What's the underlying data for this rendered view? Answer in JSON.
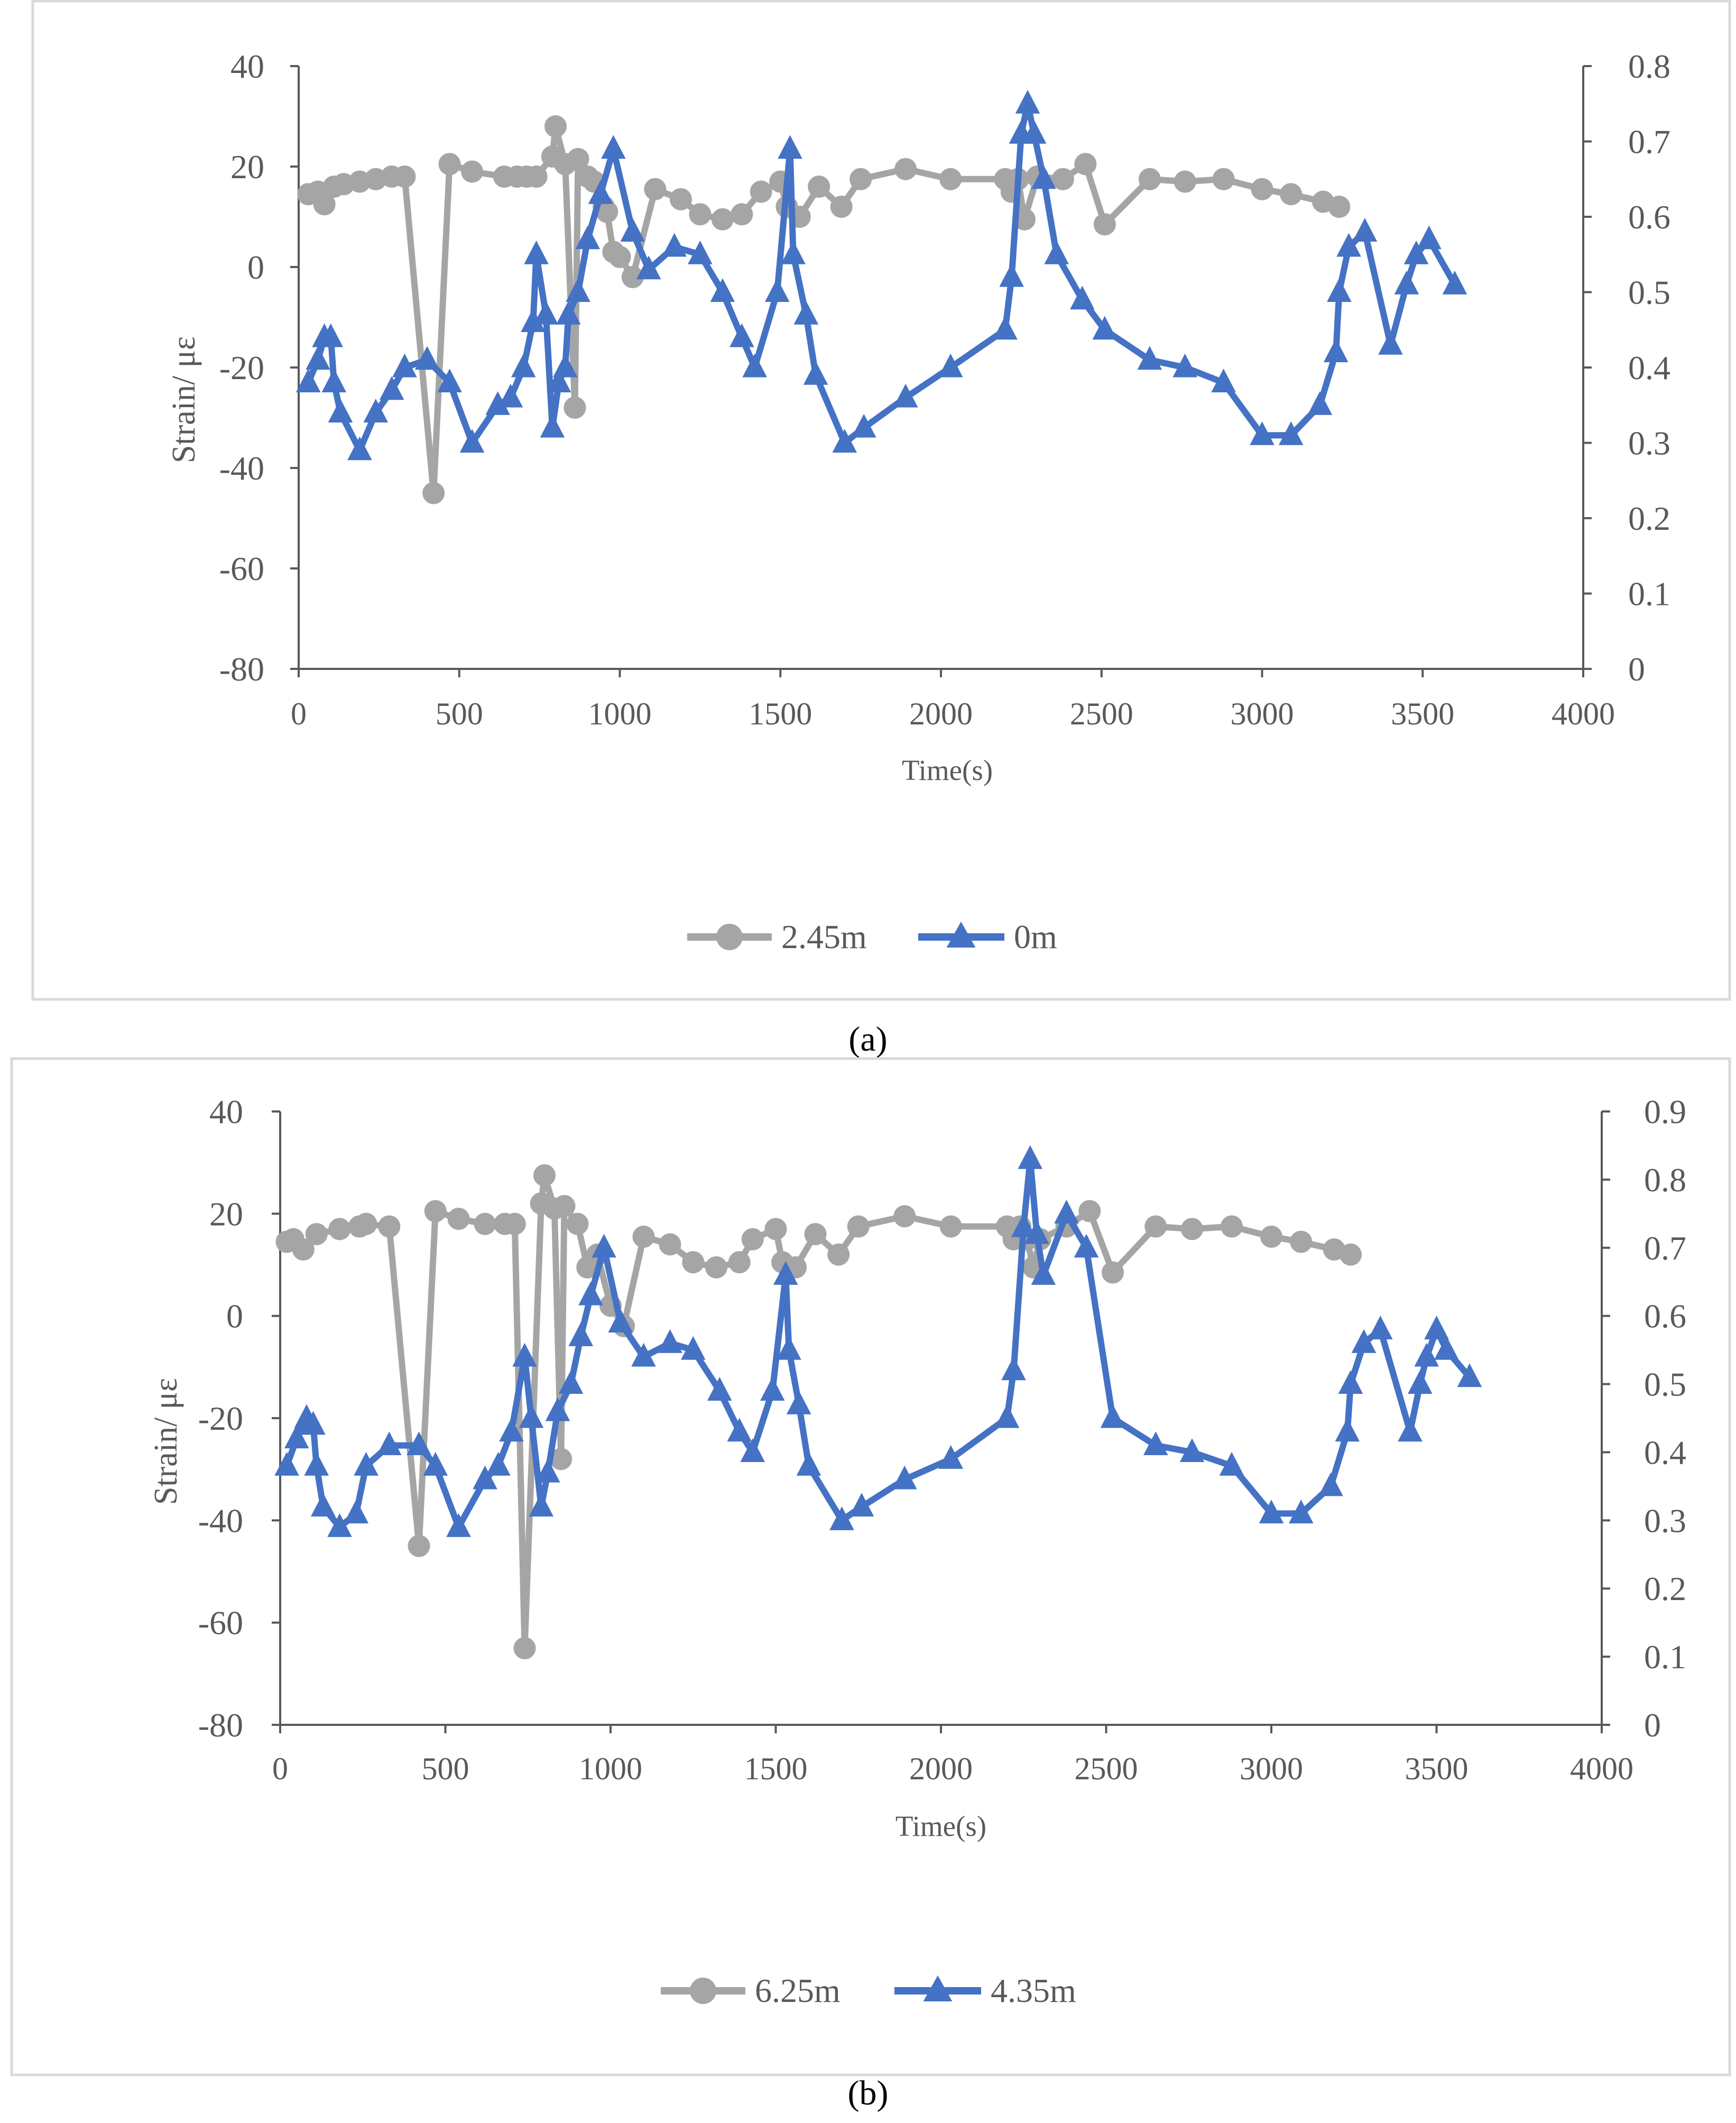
{
  "colors": {
    "gray_series": "#A5A5A5",
    "blue_series": "#4472C4",
    "axis": "#595959",
    "frame": "#D9D9D9"
  },
  "chart_data": [
    {
      "panel": "a",
      "caption": "(a)",
      "type": "line",
      "xlabel": "Time(s)",
      "ylabel": "Strain/ με",
      "xlim": [
        0,
        4000
      ],
      "ylim_left": [
        -80,
        40
      ],
      "ylim_right": [
        0,
        0.8
      ],
      "x_ticks": [
        0,
        500,
        1000,
        1500,
        2000,
        2500,
        3000,
        3500,
        4000
      ],
      "x_tick_labels": [
        "0",
        "500",
        "1000",
        "1500",
        "2000",
        "2500",
        "3000",
        "3500",
        "4000"
      ],
      "y_left_ticks": [
        40,
        20,
        0,
        -20,
        -40,
        -60,
        -80
      ],
      "y_left_tick_labels": [
        "40",
        "20",
        "0",
        "-20",
        "-40",
        "-60",
        "-80"
      ],
      "y_right_ticks": [
        0.8,
        0.7,
        0.6,
        0.5,
        0.4,
        0.3,
        0.2,
        0.1,
        0
      ],
      "y_right_tick_labels": [
        "0.8",
        "0.7",
        "0.6",
        "0.5",
        "0.4",
        "0.3",
        "0.2",
        "0.1",
        "0"
      ],
      "legend_position": "bottom-center",
      "series": [
        {
          "name": "2.45m",
          "axis": "left",
          "marker": "circle",
          "color": "#A5A5A5",
          "x": [
            30,
            60,
            80,
            110,
            140,
            190,
            240,
            290,
            330,
            420,
            470,
            540,
            640,
            680,
            710,
            740,
            790,
            800,
            830,
            860,
            870,
            900,
            920,
            950,
            960,
            980,
            1000,
            1040,
            1110,
            1190,
            1250,
            1320,
            1380,
            1440,
            1500,
            1520,
            1560,
            1620,
            1690,
            1750,
            1890,
            2030,
            2200,
            2220,
            2240,
            2260,
            2300,
            2380,
            2450,
            2510,
            2650,
            2760,
            2880,
            3000,
            3090,
            3190,
            3240
          ],
          "y": [
            14.5,
            15,
            12.5,
            16,
            16.5,
            17,
            17.5,
            18,
            18,
            -45,
            20.5,
            19,
            18,
            18,
            18,
            18,
            22,
            28,
            20.5,
            -28,
            21.5,
            18,
            17,
            12,
            11,
            3,
            2,
            -2,
            15.5,
            13.5,
            10.5,
            9.5,
            10.5,
            15,
            17,
            12,
            10,
            16,
            12,
            17.5,
            19.5,
            17.5,
            17.5,
            15,
            17.5,
            9.5,
            18,
            17.5,
            20.5,
            8.5,
            17.5,
            17,
            17.5,
            15.5,
            14.5,
            13,
            12
          ]
        },
        {
          "name": "0m",
          "axis": "right",
          "marker": "triangle",
          "color": "#4472C4",
          "x": [
            30,
            60,
            80,
            100,
            110,
            130,
            190,
            240,
            290,
            330,
            400,
            470,
            540,
            620,
            660,
            700,
            730,
            740,
            770,
            790,
            810,
            830,
            840,
            870,
            900,
            940,
            980,
            1040,
            1090,
            1170,
            1250,
            1320,
            1380,
            1420,
            1490,
            1530,
            1540,
            1580,
            1610,
            1700,
            1760,
            1890,
            2030,
            2200,
            2220,
            2250,
            2270,
            2290,
            2320,
            2360,
            2440,
            2510,
            2650,
            2760,
            2880,
            3000,
            3090,
            3180,
            3230,
            3240,
            3270,
            3320,
            3400,
            3450,
            3480,
            3520,
            3600
          ],
          "y": [
            0.38,
            0.41,
            0.44,
            0.44,
            0.38,
            0.34,
            0.29,
            0.34,
            0.37,
            0.4,
            0.41,
            0.38,
            0.3,
            0.35,
            0.36,
            0.4,
            0.46,
            0.55,
            0.47,
            0.32,
            0.38,
            0.4,
            0.47,
            0.5,
            0.57,
            0.63,
            0.69,
            0.58,
            0.53,
            0.56,
            0.55,
            0.5,
            0.44,
            0.4,
            0.5,
            0.69,
            0.55,
            0.47,
            0.39,
            0.3,
            0.32,
            0.36,
            0.4,
            0.45,
            0.52,
            0.71,
            0.75,
            0.71,
            0.65,
            0.55,
            0.49,
            0.45,
            0.41,
            0.4,
            0.38,
            0.31,
            0.31,
            0.35,
            0.42,
            0.5,
            0.56,
            0.58,
            0.43,
            0.51,
            0.55,
            0.57,
            0.51
          ]
        }
      ]
    },
    {
      "panel": "b",
      "caption": "(b)",
      "type": "line",
      "xlabel": "Time(s)",
      "ylabel": "Strain/ με",
      "xlim": [
        0,
        4000
      ],
      "ylim_left": [
        -80,
        40
      ],
      "ylim_right": [
        0,
        0.9
      ],
      "x_ticks": [
        0,
        500,
        1000,
        1500,
        2000,
        2500,
        3000,
        3500,
        4000
      ],
      "x_tick_labels": [
        "0",
        "500",
        "1000",
        "1500",
        "2000",
        "2500",
        "3000",
        "3500",
        "4000"
      ],
      "y_left_ticks": [
        40,
        20,
        0,
        -20,
        -40,
        -60,
        -80
      ],
      "y_left_tick_labels": [
        "40",
        "20",
        "0",
        "-20",
        "-40",
        "-60",
        "-80"
      ],
      "y_right_ticks": [
        0.9,
        0.8,
        0.7,
        0.6,
        0.5,
        0.4,
        0.3,
        0.2,
        0.1,
        0
      ],
      "y_right_tick_labels": [
        "0.9",
        "0.8",
        "0.7",
        "0.6",
        "0.5",
        "0.4",
        "0.3",
        "0.2",
        "0.1",
        "0"
      ],
      "legend_position": "bottom-center",
      "series": [
        {
          "name": "6.25m",
          "axis": "left",
          "marker": "circle",
          "color": "#A5A5A5",
          "x": [
            20,
            40,
            70,
            110,
            180,
            240,
            260,
            330,
            420,
            470,
            540,
            620,
            680,
            710,
            740,
            790,
            800,
            830,
            850,
            860,
            900,
            930,
            960,
            1000,
            1040,
            1100,
            1180,
            1250,
            1320,
            1390,
            1430,
            1500,
            1520,
            1560,
            1620,
            1690,
            1750,
            1890,
            2030,
            2200,
            2220,
            2240,
            2260,
            2280,
            2300,
            2380,
            2450,
            2520,
            2650,
            2760,
            2880,
            3000,
            3090,
            3190,
            3240
          ],
          "y": [
            14.5,
            15,
            13,
            16,
            17,
            17.5,
            18,
            17.5,
            -45,
            20.5,
            19,
            18,
            18,
            18,
            -65,
            22,
            27.5,
            21,
            -28,
            21.5,
            18,
            9.5,
            12,
            2,
            -2,
            15.5,
            14,
            10.5,
            9.5,
            10.5,
            15,
            17,
            10.5,
            9.5,
            16,
            12,
            17.5,
            19.5,
            17.5,
            17.5,
            15,
            17.5,
            15,
            9.5,
            15,
            17.5,
            20.5,
            8.5,
            17.5,
            17,
            17.5,
            15.5,
            14.5,
            13,
            12
          ]
        },
        {
          "name": "4.35m",
          "axis": "right",
          "marker": "triangle",
          "color": "#4472C4",
          "x": [
            20,
            50,
            80,
            100,
            110,
            130,
            180,
            230,
            260,
            330,
            420,
            470,
            540,
            620,
            660,
            700,
            740,
            760,
            790,
            810,
            840,
            880,
            910,
            940,
            980,
            1030,
            1100,
            1180,
            1250,
            1330,
            1390,
            1430,
            1490,
            1530,
            1540,
            1570,
            1600,
            1700,
            1760,
            1890,
            2030,
            2200,
            2220,
            2250,
            2270,
            2290,
            2310,
            2380,
            2440,
            2520,
            2650,
            2760,
            2880,
            3000,
            3090,
            3180,
            3230,
            3240,
            3280,
            3330,
            3420,
            3450,
            3470,
            3500,
            3530,
            3600
          ],
          "y": [
            0.38,
            0.42,
            0.45,
            0.44,
            0.38,
            0.32,
            0.29,
            0.31,
            0.38,
            0.41,
            0.41,
            0.38,
            0.29,
            0.36,
            0.38,
            0.43,
            0.54,
            0.45,
            0.32,
            0.37,
            0.46,
            0.5,
            0.57,
            0.63,
            0.7,
            0.59,
            0.54,
            0.56,
            0.55,
            0.49,
            0.43,
            0.4,
            0.49,
            0.66,
            0.55,
            0.47,
            0.38,
            0.3,
            0.32,
            0.36,
            0.39,
            0.45,
            0.52,
            0.73,
            0.83,
            0.72,
            0.66,
            0.75,
            0.7,
            0.45,
            0.41,
            0.4,
            0.38,
            0.31,
            0.31,
            0.35,
            0.43,
            0.5,
            0.56,
            0.58,
            0.43,
            0.5,
            0.54,
            0.58,
            0.55,
            0.51
          ]
        }
      ]
    }
  ]
}
